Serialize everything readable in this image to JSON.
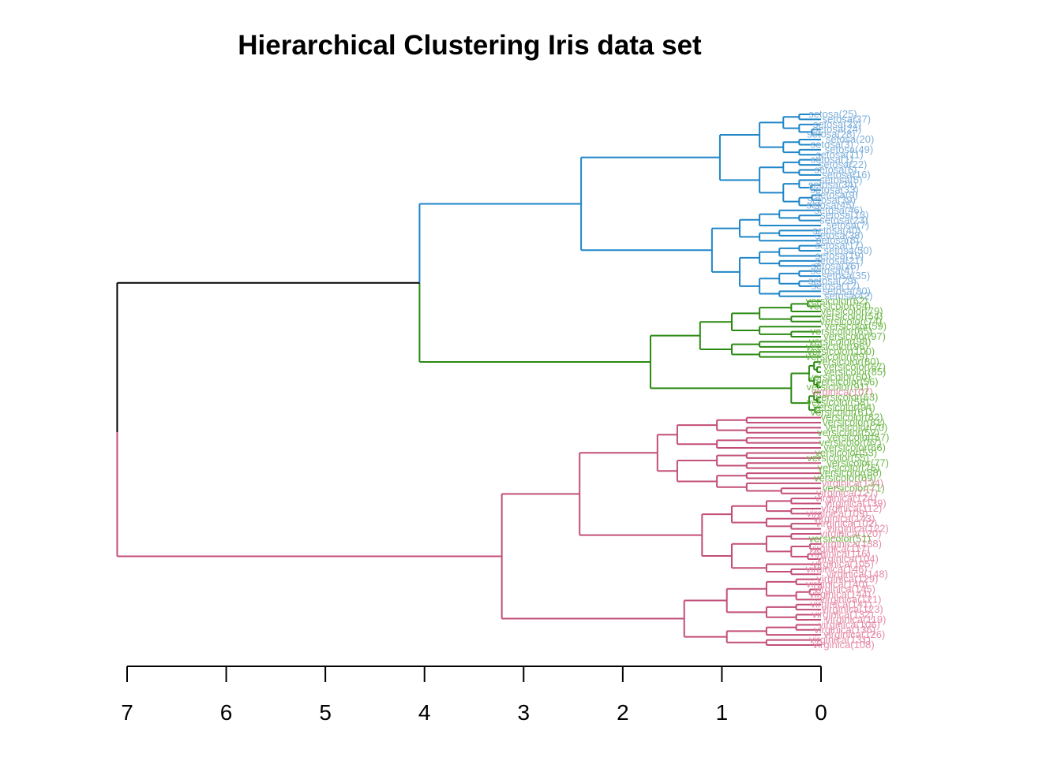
{
  "chart_data": {
    "type": "dendrogram",
    "title": "Hierarchical Clustering Iris data set",
    "xlabel": "",
    "ylabel": "",
    "xlim": [
      7,
      0
    ],
    "x_ticks": [
      "7",
      "6",
      "5",
      "4",
      "3",
      "2",
      "1",
      "0"
    ],
    "colors": {
      "setosa": "#1f86c8",
      "versicolor": "#2b8a12",
      "virginica": "#c34e79",
      "root": "#000000",
      "setosa_label": "#7fb0db",
      "versicolor_label": "#6fb84a",
      "virginica_label": "#e58ba7"
    },
    "root_height": 7.1,
    "main_merges": [
      {
        "height": 4.05,
        "joins": [
          "setosa cluster",
          "versicolor cluster"
        ]
      },
      {
        "height": 7.1,
        "joins": [
          "setosa+versicolor",
          "virginica cluster"
        ]
      }
    ],
    "clusters": [
      {
        "name": "setosa",
        "height": 2.42,
        "subclusters": [
          {
            "height": 1.42,
            "merge_heights": [
              1.02,
              0.62,
              0.38,
              0.22
            ]
          },
          {
            "height": 1.42,
            "merge_heights": [
              1.1,
              0.82,
              0.62,
              0.42,
              0.22
            ]
          }
        ],
        "leaf_labels": [
          "setosa(25)",
          "setosa(37)",
          "setosa(32)",
          "setosa(24)",
          "setosa(28)",
          "setosa(20)",
          "setosa(3)",
          "setosa(49)",
          "setosa(11)",
          "setosa(1)",
          "setosa(22)",
          "setosa(6)",
          "setosa(16)",
          "setosa(5)",
          "setosa(34)",
          "setosa(33)",
          "setosa(9)",
          "setosa(39)",
          "setosa(45)",
          "setosa(46)",
          "setosa(13)",
          "setosa(23)",
          "setosa(7)",
          "setosa(40)",
          "setosa(38)",
          "setosa(8)",
          "setosa(17)",
          "setosa(50)",
          "setosa(19)",
          "setosa(21)",
          "setosa(26)",
          "setosa(4)",
          "setosa(35)",
          "setosa(29)",
          "setosa(12)",
          "setosa(30)",
          "setosa(42)"
        ]
      },
      {
        "name": "versicolor",
        "height": 1.72,
        "subclusters": [
          {
            "height": 1.48,
            "merge_heights": [
              1.22,
              0.9,
              0.62,
              0.3
            ]
          },
          {
            "height": 0.55,
            "merge_heights": [
              0.3,
              0.12
            ]
          }
        ],
        "leaf_labels": [
          "versicolor(62)",
          "versicolor(64)",
          "versicolor(79)",
          "versicolor(54)",
          "versicolor(74)",
          "versicolor(59)",
          "versicolor(65)",
          "versicolor(97)",
          "versicolor(98)",
          "versicolor(96)",
          "versicolor(100)",
          "versicolor(89)",
          "versicolor(80)",
          "versicolor(67)",
          "versicolor(85)",
          "versicolor(60)",
          "versicolor(56)",
          "versicolor(91)",
          "virginica(107)",
          "versicolor(63)",
          "versicolor(58)",
          "versicolor(94)",
          "versicolor(61)"
        ]
      },
      {
        "name": "virginica",
        "height": 3.22,
        "subclusters": [
          {
            "height": 2.22,
            "merge_heights": [
              1.65,
              1.45,
              1.05,
              0.75,
              0.4
            ]
          },
          {
            "height": 1.45,
            "merge_heights": [
              1.2,
              0.9,
              0.55,
              0.3
            ]
          },
          {
            "height": 1.45,
            "merge_heights": [
              1.38,
              0.95,
              0.55,
              0.25
            ]
          }
        ],
        "leaf_labels": [
          "versicolor(82)",
          "versicolor(81)",
          "versicolor(70)",
          "versicolor(52)",
          "versicolor(57)",
          "versicolor(87)",
          "versicolor(66)",
          "versicolor(53)",
          "versicolor(55)",
          "versicolor(77)",
          "versicolor(76)",
          "versicolor(88)",
          "versicolor(69)",
          "virginica(134)",
          "versicolor(71)",
          "virginica(127)",
          "virginica(124)",
          "virginica(139)",
          "virginica(112)",
          "virginica(109)",
          "virginica(143)",
          "virginica(102)",
          "virginica(122)",
          "virginica(120)",
          "versicolor(51)",
          "virginica(138)",
          "virginica(117)",
          "virginica(116)",
          "virginica(104)",
          "virginica(105)",
          "virginica(146)",
          "virginica(148)",
          "virginica(129)",
          "virginica(140)",
          "virginica(145)",
          "virginica(144)",
          "virginica(121)",
          "virginica(141)",
          "virginica(123)",
          "virginica(132)",
          "virginica(119)",
          "virginica(106)",
          "virginica(136)",
          "virginica(126)",
          "virginica(131)",
          "virginica(108)"
        ]
      }
    ]
  }
}
